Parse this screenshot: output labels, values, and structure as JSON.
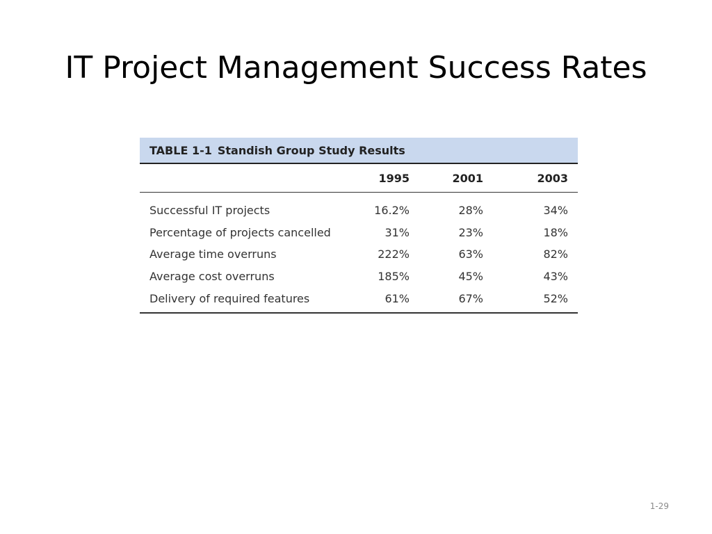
{
  "slide": {
    "title": "IT Project Management Success Rates",
    "number": "1-29"
  },
  "table": {
    "caption_number": "TABLE 1-1",
    "caption_title": "Standish Group Study Results",
    "header_color": "#c9d8ee",
    "columns": [
      "",
      "1995",
      "2001",
      "2003"
    ],
    "rows": [
      {
        "label": "Successful IT projects",
        "values": [
          "16.2%",
          "28%",
          "34%"
        ]
      },
      {
        "label": "Percentage of projects cancelled",
        "values": [
          "31%",
          "23%",
          "18%"
        ]
      },
      {
        "label": "Average time overruns",
        "values": [
          "222%",
          "63%",
          "82%"
        ]
      },
      {
        "label": "Average cost overruns",
        "values": [
          "185%",
          "45%",
          "43%"
        ]
      },
      {
        "label": "Delivery of required features",
        "values": [
          "61%",
          "67%",
          "52%"
        ]
      }
    ]
  }
}
